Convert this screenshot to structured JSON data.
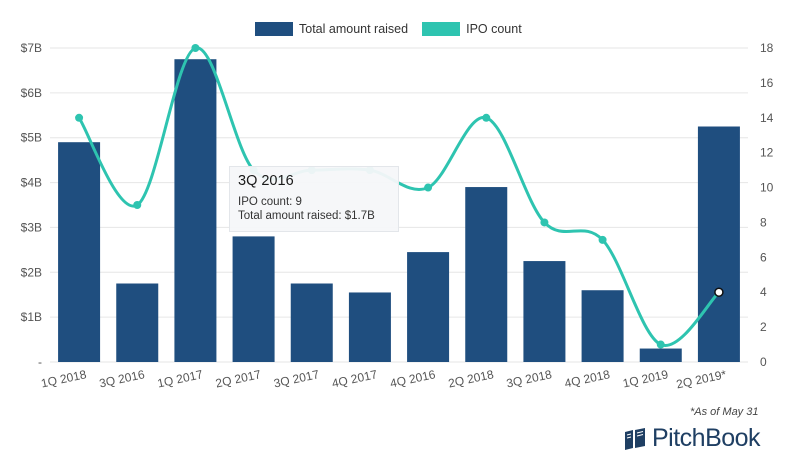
{
  "legend": {
    "bars_label": "Total amount raised",
    "line_label": "IPO count"
  },
  "tooltip": {
    "title": "3Q 2016",
    "count_line": "IPO count: 9",
    "amount_line": "Total amount raised: $1.7B"
  },
  "footnote": "*As of May 31",
  "brand": {
    "name": "PitchBook"
  },
  "colors": {
    "bar": "#1f4e7f",
    "line": "#2ec4b0",
    "grid": "#e6e6e6",
    "axis_text": "#555555"
  },
  "chart_data": {
    "type": "bar",
    "categories": [
      "1Q 2018",
      "3Q 2016",
      "1Q 2017",
      "2Q 2017",
      "3Q 2017",
      "4Q 2017",
      "4Q 2016",
      "2Q 2018",
      "3Q 2018",
      "4Q 2018",
      "1Q 2019",
      "2Q 2019*"
    ],
    "series": [
      {
        "name": "Total amount raised",
        "type": "bar",
        "axis": "left",
        "values": [
          4.9,
          1.75,
          6.75,
          2.8,
          1.75,
          1.55,
          2.45,
          3.9,
          2.25,
          1.6,
          0.3,
          5.25
        ]
      },
      {
        "name": "IPO count",
        "type": "line",
        "axis": "right",
        "values": [
          14,
          9,
          18,
          11,
          11,
          11,
          10,
          14,
          8,
          7,
          1,
          4
        ]
      }
    ],
    "y_left": {
      "ylim": [
        0,
        7
      ],
      "ticks": [
        0,
        1,
        2,
        3,
        4,
        5,
        6,
        7
      ],
      "tick_labels": [
        "-",
        "$1B",
        "$2B",
        "$3B",
        "$4B",
        "$5B",
        "$6B",
        "$7B"
      ]
    },
    "y_right": {
      "ylim": [
        0,
        18
      ],
      "ticks": [
        0,
        2,
        4,
        6,
        8,
        10,
        12,
        14,
        16,
        18
      ],
      "tick_labels": [
        "0",
        "2",
        "4",
        "6",
        "8",
        "10",
        "12",
        "14",
        "16",
        "18"
      ]
    },
    "grid": true,
    "legend_position": "top-center",
    "highlighted_point": 11
  }
}
